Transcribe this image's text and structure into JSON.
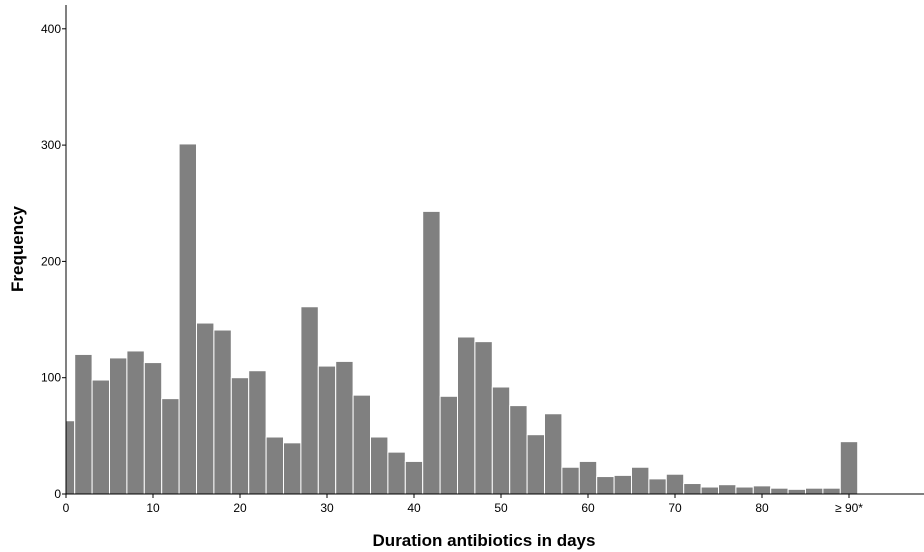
{
  "chart_data": {
    "type": "bar",
    "title": "",
    "xlabel": "Duration antibiotics in days",
    "ylabel": "Frequency",
    "bin_width": 2,
    "xlim": [
      0,
      100
    ],
    "ylim": [
      0,
      400
    ],
    "x_ticks": [
      "0",
      "10",
      "20",
      "30",
      "40",
      "50",
      "60",
      "70",
      "80",
      "≥ 90*"
    ],
    "y_ticks": [
      "0",
      "100",
      "200",
      "300",
      "400"
    ],
    "grid": false,
    "bin_starts": [
      -1,
      1,
      3,
      5,
      7,
      9,
      11,
      13,
      15,
      17,
      19,
      21,
      23,
      25,
      27,
      29,
      31,
      33,
      35,
      37,
      39,
      41,
      43,
      45,
      47,
      49,
      51,
      53,
      55,
      57,
      59,
      61,
      63,
      65,
      67,
      69,
      71,
      73,
      75,
      77,
      79,
      81,
      83,
      85,
      87,
      89
    ],
    "values": [
      63,
      120,
      98,
      117,
      123,
      113,
      82,
      301,
      147,
      141,
      100,
      106,
      49,
      44,
      161,
      110,
      114,
      85,
      49,
      36,
      28,
      243,
      84,
      135,
      131,
      92,
      76,
      51,
      69,
      23,
      28,
      15,
      16,
      23,
      13,
      17,
      9,
      6,
      8,
      6,
      7,
      5,
      4,
      5,
      5,
      45
    ],
    "color": "#808080"
  }
}
